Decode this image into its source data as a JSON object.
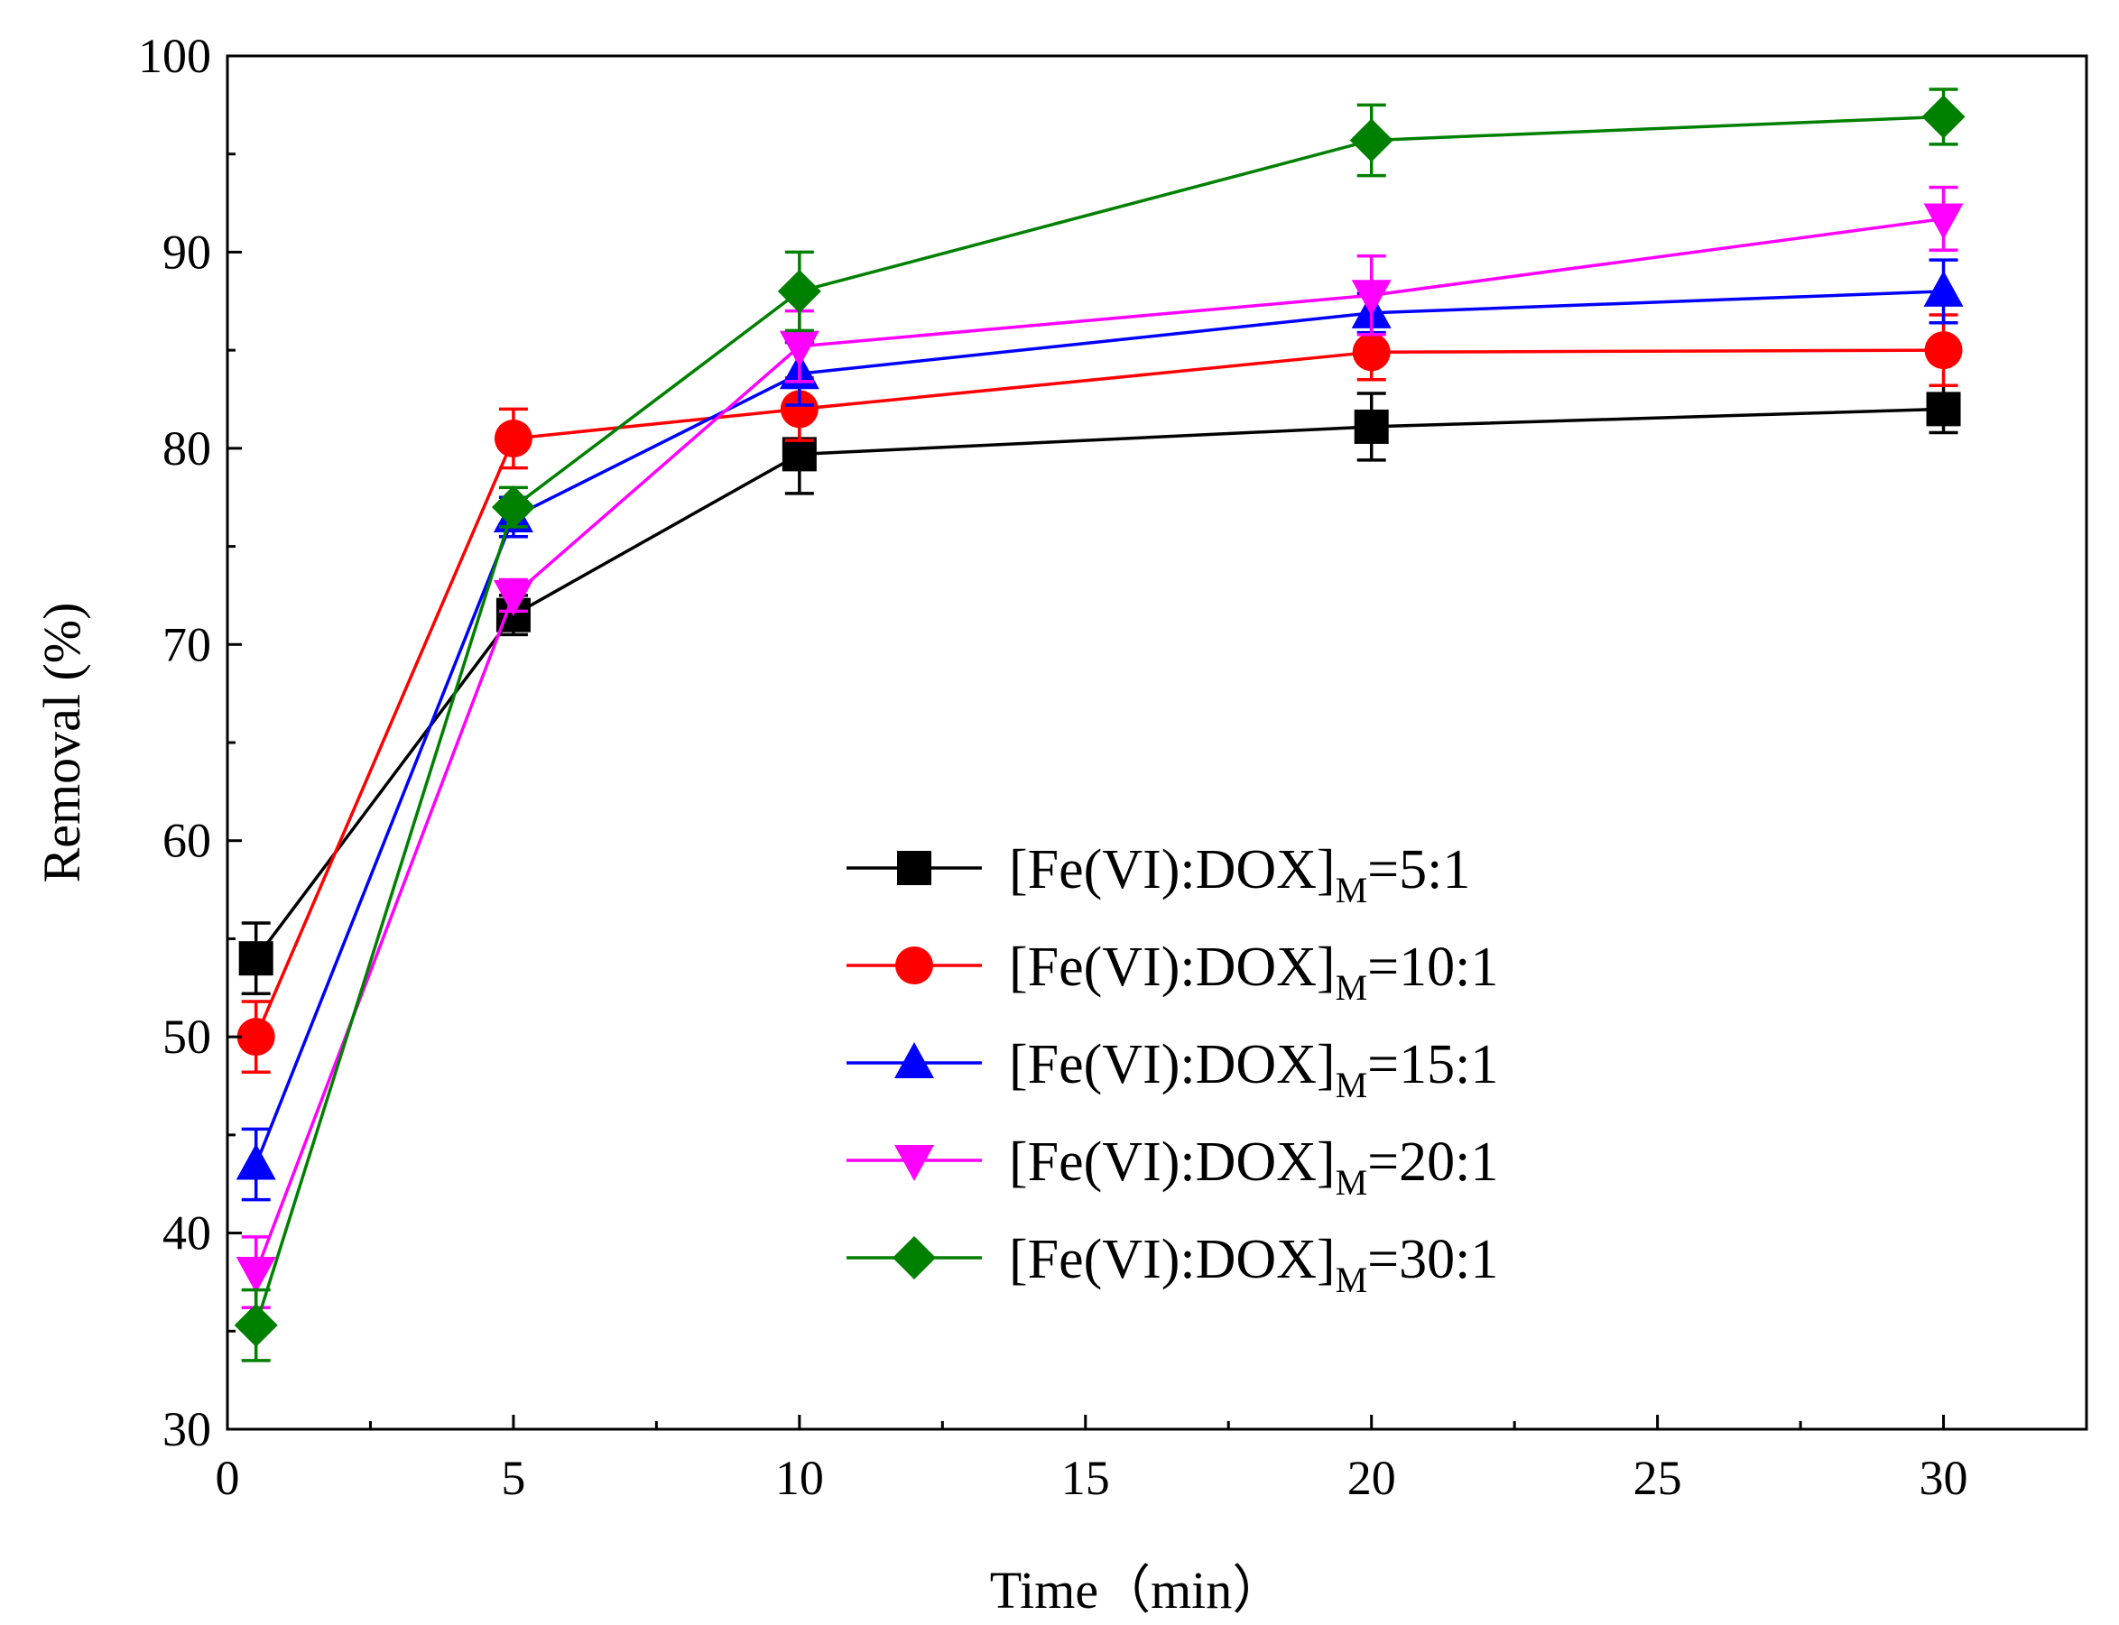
{
  "chart_data": {
    "type": "line",
    "title": "",
    "xlabel": "Time（min）",
    "ylabel": "Removal (%)",
    "xlim": [
      0,
      32.5
    ],
    "ylim": [
      30,
      100
    ],
    "xticks": [
      0,
      5,
      10,
      15,
      20,
      25,
      30
    ],
    "yticks": [
      30,
      40,
      50,
      60,
      70,
      80,
      90,
      100
    ],
    "x": [
      0.5,
      5,
      10,
      20,
      30
    ],
    "legend_position": "center-right",
    "series": [
      {
        "name": "[Fe(VI):DOX]M=5:1",
        "label_main": "[Fe(VI):DOX]",
        "label_sub": "M",
        "label_tail": "=5:1",
        "color": "#000000",
        "marker": "square",
        "values": [
          54.0,
          71.5,
          79.7,
          81.1,
          82.0
        ],
        "errors": [
          1.8,
          1.0,
          2.0,
          1.7,
          1.2
        ]
      },
      {
        "name": "[Fe(VI):DOX]M=10:1",
        "label_main": "[Fe(VI):DOX]",
        "label_sub": "M",
        "label_tail": "=10:1",
        "color": "#ff0000",
        "marker": "circle",
        "values": [
          50.0,
          80.5,
          82.0,
          84.9,
          85.0
        ],
        "errors": [
          1.8,
          1.5,
          1.6,
          1.4,
          1.8
        ]
      },
      {
        "name": "[Fe(VI):DOX]M=15:1",
        "label_main": "[Fe(VI):DOX]",
        "label_sub": "M",
        "label_tail": "=15:1",
        "color": "#0000ff",
        "marker": "triangle-up",
        "values": [
          43.5,
          76.5,
          83.8,
          86.9,
          88.0
        ],
        "errors": [
          1.8,
          1.0,
          1.6,
          1.0,
          1.6
        ]
      },
      {
        "name": "[Fe(VI):DOX]M=20:1",
        "label_main": "[Fe(VI):DOX]",
        "label_sub": "M",
        "label_tail": "=20:1",
        "color": "#ff00ff",
        "marker": "triangle-down",
        "values": [
          38.0,
          72.5,
          85.2,
          87.8,
          91.7
        ],
        "errors": [
          1.8,
          0.8,
          1.8,
          2.0,
          1.6
        ]
      },
      {
        "name": "[Fe(VI):DOX]M=30:1",
        "label_main": "[Fe(VI):DOX]",
        "label_sub": "M",
        "label_tail": "=30:1",
        "color": "#008000",
        "marker": "diamond",
        "values": [
          35.3,
          77.0,
          88.0,
          95.7,
          96.9
        ],
        "errors": [
          1.8,
          1.0,
          2.0,
          1.8,
          1.4
        ]
      }
    ]
  }
}
